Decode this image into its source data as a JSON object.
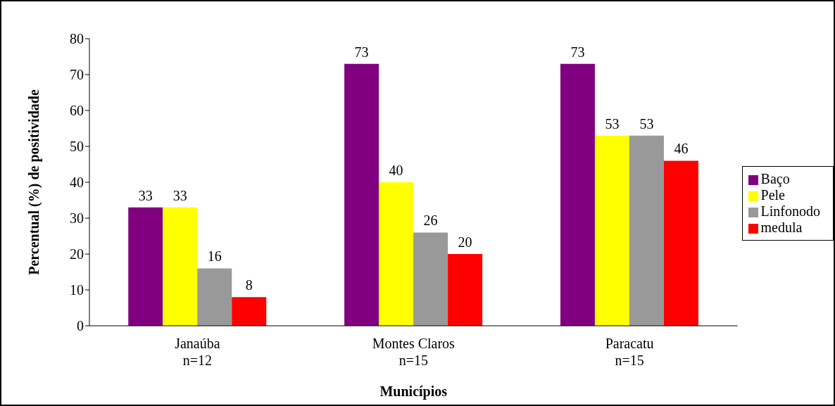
{
  "chart_data": {
    "type": "bar",
    "xlabel": "Municípios",
    "ylabel": "Percentual (%) de positividade",
    "categories": [
      "Janaúba\nn=12",
      "Montes Claros\nn=15",
      "Paracatu\nn=15"
    ],
    "series": [
      {
        "name": "Baço",
        "color": "#800080",
        "values": [
          33,
          73,
          73
        ]
      },
      {
        "name": "Pele",
        "color": "#ffff00",
        "values": [
          33,
          40,
          53
        ]
      },
      {
        "name": "Linfonodo",
        "color": "#999999",
        "values": [
          16,
          26,
          53
        ]
      },
      {
        "name": "medula",
        "color": "#ff0000",
        "values": [
          8,
          20,
          46
        ]
      }
    ],
    "ylim": [
      0,
      80
    ],
    "yticks": [
      0,
      10,
      20,
      30,
      40,
      50,
      60,
      70,
      80
    ],
    "grid": false,
    "legend": "right",
    "data_labels": true
  }
}
